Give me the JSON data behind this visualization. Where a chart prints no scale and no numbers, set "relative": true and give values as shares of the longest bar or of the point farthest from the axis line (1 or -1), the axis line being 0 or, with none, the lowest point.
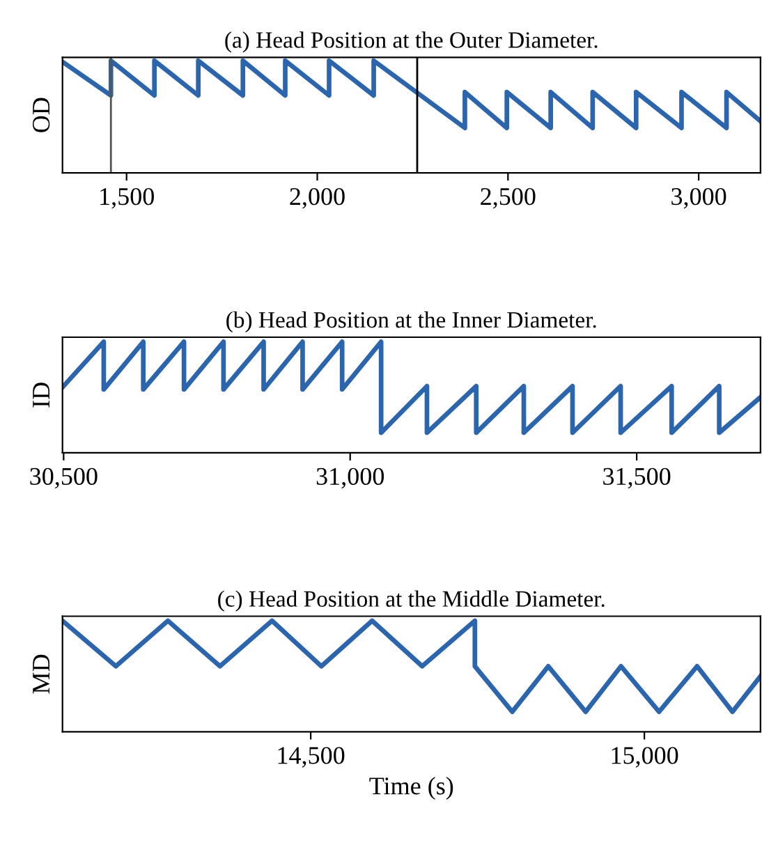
{
  "chart_data": [
    {
      "type": "line",
      "title": "(a) Head Position at the Outer Diameter.",
      "ylabel": "OD",
      "relative": true,
      "xlim": [
        1332,
        3162
      ],
      "xticks": [
        {
          "value": 1500,
          "label": "1,500"
        },
        {
          "value": 2000,
          "label": "2,000"
        },
        {
          "value": 2500,
          "label": "2,500"
        },
        {
          "value": 3000,
          "label": "3,000"
        }
      ],
      "grid": false,
      "legend": false,
      "ref_lines": [
        {
          "axis": "x",
          "value": 1459,
          "color": "#555555"
        },
        {
          "axis": "x",
          "value": 2262,
          "color": "#000000"
        }
      ],
      "series": [
        {
          "color": "#2a65ad",
          "x": [
            1332,
            1459,
            1459,
            1573,
            1573,
            1688,
            1688,
            1805,
            1805,
            1916,
            1916,
            2031,
            2031,
            2148,
            2148,
            2387,
            2387,
            2497,
            2497,
            2612,
            2612,
            2722,
            2722,
            2836,
            2836,
            2955,
            2955,
            3073,
            3073,
            3162
          ],
          "values": [
            0.99,
            0.69,
            1,
            0.69,
            1,
            0.69,
            1,
            0.69,
            1,
            0.69,
            1,
            0.69,
            1,
            0.69,
            1,
            0.4,
            0.72,
            0.4,
            0.72,
            0.4,
            0.72,
            0.4,
            0.72,
            0.4,
            0.72,
            0.4,
            0.72,
            0.4,
            0.72,
            0.46
          ]
        }
      ]
    },
    {
      "type": "line",
      "title": "(b) Head Position at the Inner Diameter.",
      "ylabel": "ID",
      "relative": true,
      "xlim": [
        30498,
        31716
      ],
      "xticks": [
        {
          "value": 30500,
          "label": "30,500"
        },
        {
          "value": 31000,
          "label": "31,000"
        },
        {
          "value": 31500,
          "label": "31,500"
        }
      ],
      "grid": false,
      "legend": false,
      "series": [
        {
          "color": "#2a65ad",
          "x": [
            30498,
            30570,
            30570,
            30639,
            30639,
            30710,
            30710,
            30779,
            30779,
            30849,
            30849,
            30917,
            30917,
            30986,
            30986,
            31054,
            31054,
            31134,
            31134,
            31220,
            31220,
            31303,
            31303,
            31388,
            31388,
            31472,
            31472,
            31561,
            31561,
            31644,
            31644,
            31716
          ],
          "values": [
            0.59,
            1,
            0.57,
            1,
            0.57,
            1,
            0.57,
            1,
            0.57,
            1,
            0.57,
            1,
            0.57,
            1,
            0.57,
            1,
            0.18,
            0.6,
            0.18,
            0.6,
            0.18,
            0.6,
            0.18,
            0.6,
            0.18,
            0.6,
            0.18,
            0.6,
            0.18,
            0.6,
            0.18,
            0.5
          ]
        }
      ]
    },
    {
      "type": "line",
      "title": "(c) Head Position at the Middle Diameter.",
      "ylabel": "MD",
      "xlabel": "Time (s)",
      "relative": true,
      "xlim": [
        14128,
        15174
      ],
      "xticks": [
        {
          "value": 14500,
          "label": "14,500"
        },
        {
          "value": 15000,
          "label": "15,000"
        }
      ],
      "grid": false,
      "legend": false,
      "series": [
        {
          "color": "#2a65ad",
          "x": [
            14128,
            14208,
            14286,
            14364,
            14442,
            14516,
            14592,
            14667,
            14746,
            14746,
            14802,
            14856,
            14912,
            14965,
            15022,
            15079,
            15132,
            15174
          ],
          "values": [
            1,
            0.59,
            1,
            0.59,
            1,
            0.59,
            1,
            0.59,
            1,
            0.59,
            0.18,
            0.59,
            0.18,
            0.59,
            0.18,
            0.59,
            0.18,
            0.5
          ]
        }
      ]
    }
  ]
}
